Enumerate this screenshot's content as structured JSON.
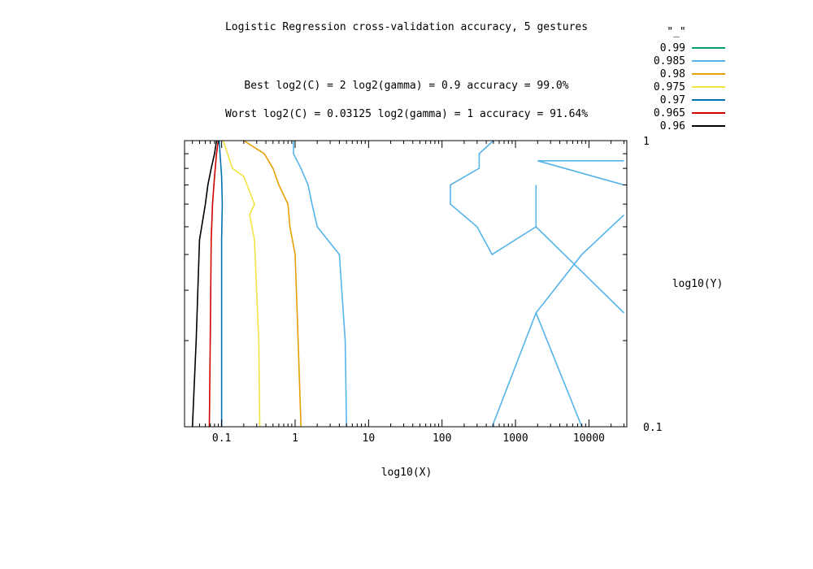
{
  "chart_data": {
    "type": "contour",
    "title": "Logistic Regression cross-validation accuracy, 5 gestures",
    "subtitle_best": "Best log2(C) = 2  log2(gamma) = 0.9  accuracy = 99.0%",
    "subtitle_worst": "Worst log2(C) = 0.03125  log2(gamma) = 1   accuracy = 91.64%",
    "xlabel": "log10(X)",
    "ylabel": "log10(Y)",
    "x_scale": "log",
    "y_scale": "log",
    "xlim": [
      0.03125,
      32768
    ],
    "ylim": [
      0.1,
      1
    ],
    "x_tick_labels": [
      "0.1",
      "1",
      "10",
      "100",
      "1000",
      "10000"
    ],
    "y_tick_labels": [
      "1",
      "0.1"
    ],
    "legend": {
      "title": "\"_\"",
      "position": "top-right",
      "entries": [
        {
          "label": "0.99",
          "color": "#009e73"
        },
        {
          "label": "0.985",
          "color": "#56b4e9"
        },
        {
          "label": "0.98",
          "color": "#e69f00"
        },
        {
          "label": "0.975",
          "color": "#f0e442"
        },
        {
          "label": "0.97",
          "color": "#0072b2"
        },
        {
          "label": "0.965",
          "color": "#d00000"
        },
        {
          "label": "0.96",
          "color": "#000000"
        }
      ]
    },
    "series": [
      {
        "level": "0.96",
        "color": "#000000",
        "segments": [
          [
            [
              0.04,
              0.1
            ],
            [
              0.045,
              0.2
            ],
            [
              0.05,
              0.45
            ],
            [
              0.06,
              0.6
            ],
            [
              0.065,
              0.7
            ],
            [
              0.072,
              0.8
            ],
            [
              0.08,
              0.9
            ],
            [
              0.085,
              1.0
            ]
          ]
        ]
      },
      {
        "level": "0.965",
        "color": "#d00000",
        "segments": [
          [
            [
              0.068,
              0.1
            ],
            [
              0.07,
              0.2
            ],
            [
              0.072,
              0.45
            ],
            [
              0.075,
              0.6
            ],
            [
              0.08,
              0.75
            ],
            [
              0.085,
              0.9
            ],
            [
              0.09,
              1.0
            ]
          ]
        ]
      },
      {
        "level": "0.97",
        "color": "#0072b2",
        "segments": [
          [
            [
              0.1,
              0.1
            ],
            [
              0.1,
              0.2
            ],
            [
              0.1,
              0.45
            ],
            [
              0.102,
              0.6
            ],
            [
              0.1,
              0.75
            ],
            [
              0.095,
              0.9
            ],
            [
              0.093,
              1.0
            ]
          ]
        ]
      },
      {
        "level": "0.975",
        "color": "#f0e442",
        "segments": [
          [
            [
              0.33,
              0.1
            ],
            [
              0.32,
              0.2
            ],
            [
              0.28,
              0.45
            ],
            [
              0.24,
              0.55
            ],
            [
              0.28,
              0.6
            ],
            [
              0.2,
              0.75
            ],
            [
              0.14,
              0.8
            ],
            [
              0.105,
              1.0
            ]
          ]
        ]
      },
      {
        "level": "0.98",
        "color": "#e69f00",
        "segments": [
          [
            [
              1.2,
              0.1
            ],
            [
              1.1,
              0.2
            ],
            [
              1.0,
              0.4
            ],
            [
              0.85,
              0.5
            ],
            [
              0.8,
              0.6
            ],
            [
              0.6,
              0.7
            ],
            [
              0.5,
              0.8
            ],
            [
              0.38,
              0.9
            ],
            [
              0.2,
              1.0
            ]
          ]
        ]
      },
      {
        "level": "0.985",
        "color": "#56b4e9",
        "segments": [
          [
            [
              5.0,
              0.1
            ],
            [
              4.8,
              0.2
            ],
            [
              4.0,
              0.4
            ],
            [
              2.0,
              0.5
            ],
            [
              1.7,
              0.6
            ],
            [
              1.5,
              0.7
            ],
            [
              1.2,
              0.8
            ],
            [
              0.95,
              0.9
            ],
            [
              0.95,
              1.0
            ]
          ],
          [
            [
              500,
              1.0
            ],
            [
              320,
              0.9
            ],
            [
              320,
              0.8
            ],
            [
              130,
              0.7
            ],
            [
              130,
              0.6
            ],
            [
              300,
              0.5
            ],
            [
              480,
              0.4
            ],
            [
              1900,
              0.5
            ],
            [
              30000,
              0.25
            ]
          ],
          [
            [
              30000,
              0.55
            ],
            [
              8000,
              0.4
            ],
            [
              1900,
              0.25
            ],
            [
              480,
              0.1
            ]
          ],
          [
            [
              1900,
              0.25
            ],
            [
              8000,
              0.1
            ]
          ],
          [
            [
              1900,
              0.5
            ],
            [
              1900,
              0.7
            ]
          ],
          [
            [
              30000,
              0.7
            ],
            [
              2000,
              0.85
            ],
            [
              30000,
              0.85
            ]
          ]
        ]
      }
    ]
  }
}
